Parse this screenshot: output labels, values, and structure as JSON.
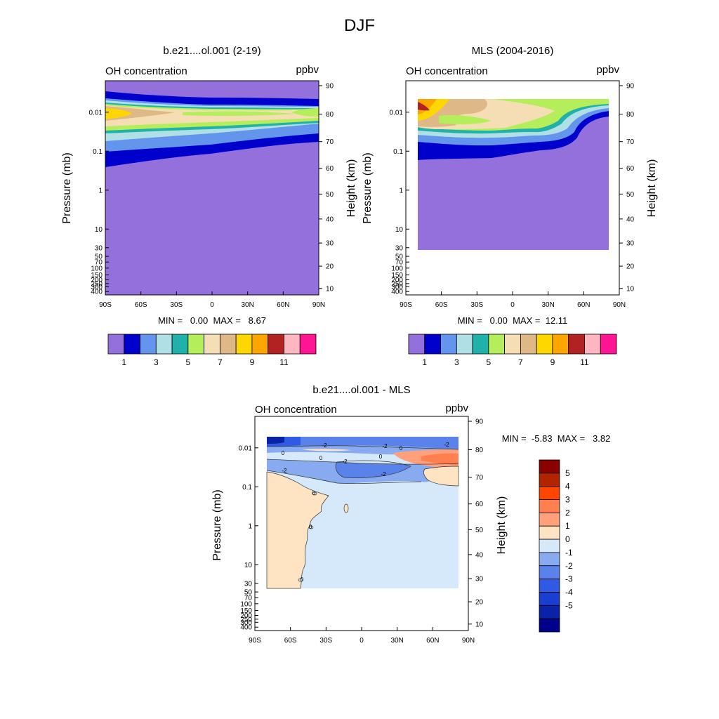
{
  "figure": {
    "title": "DJF",
    "ylabel_left": "Pressure (mb)",
    "ylabel_right": "Height (km)",
    "panel_left_label": "OH concentration",
    "panel_right_label": "ppbv"
  },
  "axes": {
    "lat_ticks": [
      "90S",
      "60S",
      "30S",
      "0",
      "30N",
      "60N",
      "90N"
    ],
    "lat_values": [
      -90,
      -60,
      -30,
      0,
      30,
      60,
      90
    ],
    "pressure_ticks": [
      "0.01",
      "0.1",
      "1",
      "10",
      "30",
      "50",
      "70",
      "100",
      "150",
      "200",
      "250",
      "300",
      "400"
    ],
    "pressure_values": [
      0.01,
      0.1,
      1,
      10,
      30,
      50,
      70,
      100,
      150,
      200,
      250,
      300,
      400
    ],
    "height_ticks": [
      "90",
      "80",
      "70",
      "60",
      "50",
      "40",
      "30",
      "20",
      "10"
    ],
    "height_values": [
      90,
      80,
      70,
      60,
      50,
      40,
      30,
      20,
      10
    ]
  },
  "colorbar_main": {
    "colors": [
      "#9370db",
      "#0000cd",
      "#6495ed",
      "#b0e0e6",
      "#20b2aa",
      "#b4ee5a",
      "#f5deb3",
      "#deb887",
      "#ffd700",
      "#ffa500",
      "#b22222",
      "#ffb6c1",
      "#ff1493"
    ],
    "labels": [
      "1",
      "3",
      "5",
      "7",
      "9",
      "11"
    ]
  },
  "colorbar_diff": {
    "colors": [
      "#8b0000",
      "#b22400",
      "#ff4500",
      "#ff7f50",
      "#ffa07a",
      "#ffe4c4",
      "#d6e9fb",
      "#87aaf0",
      "#5a82eb",
      "#2e5ae6",
      "#1a3fd0",
      "#0a22a8",
      "#00008b"
    ],
    "labels": [
      "5",
      "4",
      "3",
      "2",
      "1",
      "0",
      "-1",
      "-2",
      "-3",
      "-4",
      "-5"
    ]
  },
  "chart_data": [
    {
      "type": "heatmap",
      "title": "b.e21....ol.001 (2-19)",
      "label_left": "OH concentration",
      "label_right": "ppbv",
      "xlabel": "",
      "ylabel": "Pressure (mb)",
      "ylabel_right": "Height (km)",
      "xlim": [
        -90,
        90
      ],
      "ylim_pressure": [
        400,
        0.002
      ],
      "stats": "MIN =   0.00  MAX =   8.67",
      "min": 0.0,
      "max": 8.67,
      "levels": [
        1,
        3,
        5,
        7,
        9,
        11
      ],
      "peak_layer_pressure_mb": 0.01
    },
    {
      "type": "heatmap",
      "title": "MLS (2004-2016)",
      "label_left": "OH concentration",
      "label_right": "ppbv",
      "xlabel": "",
      "ylabel": "Pressure (mb)",
      "ylabel_right": "Height (km)",
      "xlim": [
        -90,
        90
      ],
      "ylim_pressure": [
        400,
        0.002
      ],
      "data_lat_range": [
        -80,
        80
      ],
      "data_pressure_range": [
        0.005,
        30
      ],
      "stats": "MIN =   0.00  MAX =  12.11",
      "min": 0.0,
      "max": 12.11,
      "levels": [
        1,
        3,
        5,
        7,
        9,
        11
      ]
    },
    {
      "type": "heatmap",
      "title": "b.e21....ol.001 - MLS",
      "label_left": "OH concentration",
      "label_right": "ppbv",
      "xlabel": "",
      "ylabel": "Pressure (mb)",
      "ylabel_right": "Height (km)",
      "xlim": [
        -90,
        90
      ],
      "ylim_pressure": [
        400,
        0.002
      ],
      "data_lat_range": [
        -80,
        80
      ],
      "data_pressure_range": [
        0.005,
        30
      ],
      "stats": "MIN =  -5.83  MAX =   3.82",
      "min": -5.83,
      "max": 3.82,
      "levels": [
        -5,
        -4,
        -3,
        -2,
        -1,
        0,
        1,
        2,
        3,
        4,
        5
      ],
      "contour_labels": [
        "-2",
        "-2",
        "0",
        "-2",
        "0",
        "0",
        "-2",
        "0",
        "-2",
        "-2",
        "0",
        "0",
        "0"
      ]
    }
  ]
}
